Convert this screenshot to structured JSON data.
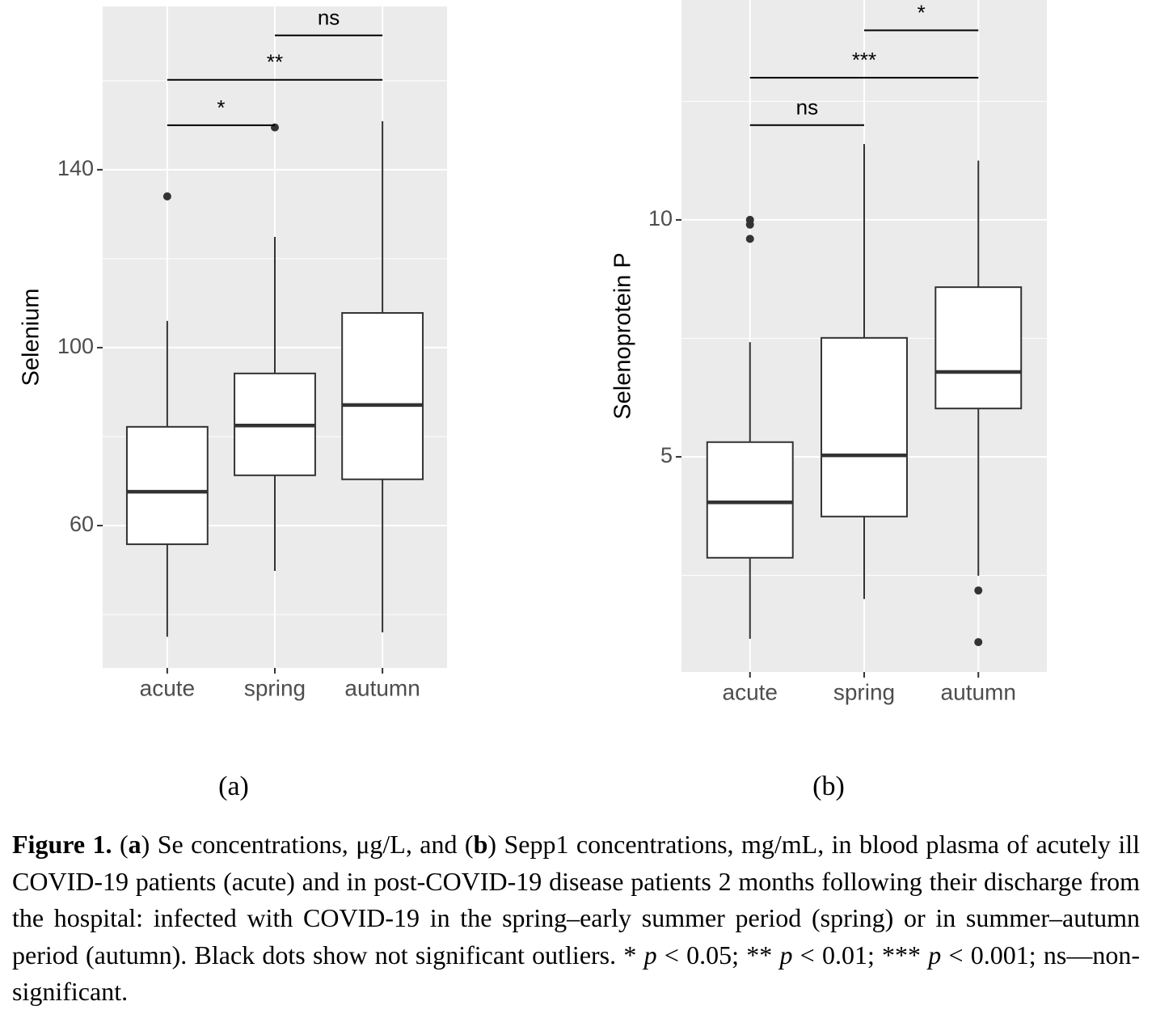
{
  "chart_data": [
    {
      "type": "box",
      "panel_label": "(a)",
      "y_label": "Selenium",
      "categories": [
        "acute",
        "spring",
        "autumn"
      ],
      "ylim": [
        28,
        176.7
      ],
      "yticks": [
        60,
        100,
        140
      ],
      "minor_grid": [
        40,
        80,
        120,
        160
      ],
      "background": "#ebebeb",
      "box_color": "#ffffff",
      "line_color": "#333333",
      "boxes": [
        {
          "low": 35,
          "q1": 55.8,
          "median": 67.6,
          "q3": 82.2,
          "high": 106,
          "outliers": [
            134
          ]
        },
        {
          "low": 49.8,
          "q1": 71.3,
          "median": 82.5,
          "q3": 94.2,
          "high": 124.9,
          "outliers": [
            149.5
          ]
        },
        {
          "low": 36,
          "q1": 70.4,
          "median": 87.1,
          "q3": 107.8,
          "high": 150.9,
          "outliers": []
        }
      ],
      "comparisons": [
        {
          "between": [
            "acute",
            "spring"
          ],
          "y": 150,
          "label": "*"
        },
        {
          "between": [
            "acute",
            "autumn"
          ],
          "y": 160.2,
          "label": "**"
        },
        {
          "between": [
            "spring",
            "autumn"
          ],
          "y": 170.2,
          "label": "ns"
        }
      ]
    },
    {
      "type": "box",
      "panel_label": "(b)",
      "y_label": "Selenoprotein P",
      "categories": [
        "acute",
        "spring",
        "autumn"
      ],
      "ylim": [
        0.46,
        14.64
      ],
      "yticks": [
        5,
        10
      ],
      "minor_grid": [
        2.5,
        7.5,
        12.5
      ],
      "background": "#ebebeb",
      "box_color": "#ffffff",
      "line_color": "#333333",
      "boxes": [
        {
          "low": 1.16,
          "q1": 2.87,
          "median": 4.04,
          "q3": 5.31,
          "high": 7.42,
          "outliers": [
            10.0,
            9.9,
            9.6
          ]
        },
        {
          "low": 2.0,
          "q1": 3.74,
          "median": 5.03,
          "q3": 7.51,
          "high": 11.6,
          "outliers": []
        },
        {
          "low": 2.49,
          "q1": 6.02,
          "median": 6.79,
          "q3": 8.58,
          "high": 11.25,
          "outliers": [
            2.18,
            1.09
          ]
        }
      ],
      "comparisons": [
        {
          "between": [
            "acute",
            "spring"
          ],
          "y": 12.0,
          "label": "ns"
        },
        {
          "between": [
            "acute",
            "autumn"
          ],
          "y": 13.0,
          "label": "***"
        },
        {
          "between": [
            "spring",
            "autumn"
          ],
          "y": 14.0,
          "label": "*"
        }
      ]
    }
  ],
  "caption": [
    "Figure 1.",
    " (",
    "a",
    ") Se concentrations, μg/L, and (",
    "b",
    ") Sepp1 concentrations, mg/mL, in blood plasma of acutely ill COVID-19 patients (acute) and in post-COVID-19 disease patients 2 months following their discharge from the hospital: infected with COVID-19 in the spring–early summer period (spring) or in summer–autumn period (autumn). Black dots show not significant outliers. * ",
    "p",
    " < 0.05; ** ",
    "p",
    " < 0.01; *** ",
    "p",
    " < 0.001; ns—non-significant."
  ]
}
